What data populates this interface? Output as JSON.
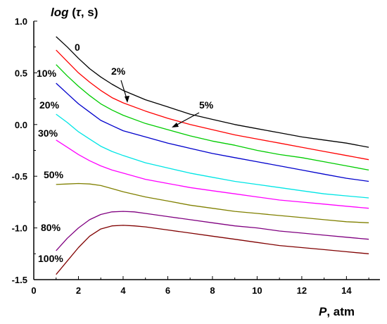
{
  "chart_data": {
    "type": "line",
    "ylabel": {
      "main": "log",
      "sym": "τ",
      "rest": ", s",
      "open": " (",
      "close": ")"
    },
    "xlabel": {
      "sym": "P",
      "unit": ", atm"
    },
    "xlim": [
      0,
      15.5
    ],
    "ylim": [
      -1.5,
      1.0
    ],
    "x_ticks": [
      "0",
      "2",
      "4",
      "6",
      "8",
      "10",
      "12",
      "14"
    ],
    "y_ticks": [
      "1.0",
      "0.5",
      "0.0",
      "-0.5",
      "-1.0",
      "-1.5"
    ],
    "series": [
      {
        "name": "0",
        "color": "#000000",
        "x": [
          1,
          1.5,
          2,
          2.5,
          3,
          3.5,
          4,
          5,
          6,
          7,
          8,
          9,
          10,
          11,
          12,
          13,
          14,
          15
        ],
        "y": [
          0.85,
          0.75,
          0.64,
          0.54,
          0.46,
          0.39,
          0.33,
          0.24,
          0.17,
          0.1,
          0.05,
          0.0,
          -0.04,
          -0.08,
          -0.12,
          -0.15,
          -0.18,
          -0.22
        ]
      },
      {
        "name": "2%",
        "color": "#ff0000",
        "x": [
          1,
          1.5,
          2,
          2.5,
          3,
          3.5,
          4,
          5,
          6,
          7,
          8,
          9,
          10,
          11,
          12,
          13,
          14,
          15
        ],
        "y": [
          0.72,
          0.61,
          0.5,
          0.41,
          0.33,
          0.26,
          0.21,
          0.13,
          0.06,
          0.0,
          -0.05,
          -0.1,
          -0.14,
          -0.18,
          -0.22,
          -0.26,
          -0.3,
          -0.34
        ]
      },
      {
        "name": "5%",
        "color": "#00cc00",
        "x": [
          1,
          1.5,
          2,
          2.5,
          3,
          3.5,
          4,
          5,
          6,
          7,
          8,
          9,
          10,
          11,
          12,
          13,
          14,
          15
        ],
        "y": [
          0.58,
          0.47,
          0.37,
          0.28,
          0.2,
          0.14,
          0.09,
          0.01,
          -0.05,
          -0.11,
          -0.16,
          -0.2,
          -0.25,
          -0.29,
          -0.32,
          -0.36,
          -0.4,
          -0.44
        ]
      },
      {
        "name": "10%",
        "color": "#0000cc",
        "x": [
          1,
          1.5,
          2,
          2.5,
          3,
          3.5,
          4,
          5,
          6,
          7,
          8,
          9,
          10,
          11,
          12,
          13,
          14,
          15
        ],
        "y": [
          0.4,
          0.3,
          0.2,
          0.12,
          0.04,
          -0.01,
          -0.06,
          -0.12,
          -0.18,
          -0.23,
          -0.28,
          -0.32,
          -0.36,
          -0.4,
          -0.44,
          -0.48,
          -0.52,
          -0.55
        ]
      },
      {
        "name": "20%",
        "color": "#00e5e5",
        "x": [
          1,
          1.5,
          2,
          2.5,
          3,
          3.5,
          4,
          5,
          6,
          7,
          8,
          9,
          10,
          11,
          12,
          13,
          14,
          15
        ],
        "y": [
          0.1,
          0.02,
          -0.07,
          -0.14,
          -0.21,
          -0.26,
          -0.3,
          -0.37,
          -0.42,
          -0.47,
          -0.51,
          -0.55,
          -0.58,
          -0.61,
          -0.64,
          -0.67,
          -0.69,
          -0.71
        ]
      },
      {
        "name": "30%",
        "color": "#ff00ff",
        "x": [
          1,
          1.5,
          2,
          2.5,
          3,
          3.5,
          4,
          5,
          6,
          7,
          8,
          9,
          10,
          11,
          12,
          13,
          14,
          15
        ],
        "y": [
          -0.15,
          -0.22,
          -0.29,
          -0.35,
          -0.4,
          -0.44,
          -0.47,
          -0.53,
          -0.57,
          -0.61,
          -0.64,
          -0.67,
          -0.7,
          -0.73,
          -0.75,
          -0.77,
          -0.79,
          -0.81
        ]
      },
      {
        "name": "50%",
        "color": "#808000",
        "x": [
          1,
          1.5,
          2,
          2.5,
          3,
          3.5,
          4,
          5,
          6,
          7,
          8,
          9,
          10,
          11,
          12,
          13,
          14,
          15
        ],
        "y": [
          -0.58,
          -0.575,
          -0.57,
          -0.575,
          -0.59,
          -0.62,
          -0.65,
          -0.7,
          -0.74,
          -0.78,
          -0.81,
          -0.84,
          -0.86,
          -0.88,
          -0.9,
          -0.92,
          -0.94,
          -0.95
        ]
      },
      {
        "name": "80%",
        "color": "#800080",
        "x": [
          1,
          1.5,
          2,
          2.5,
          3,
          3.5,
          4,
          4.5,
          5,
          6,
          7,
          8,
          9,
          10,
          11,
          12,
          13,
          14,
          15
        ],
        "y": [
          -1.22,
          -1.1,
          -1.0,
          -0.92,
          -0.87,
          -0.845,
          -0.84,
          -0.845,
          -0.86,
          -0.89,
          -0.92,
          -0.95,
          -0.98,
          -1.0,
          -1.03,
          -1.05,
          -1.07,
          -1.09,
          -1.11
        ]
      },
      {
        "name": "100%",
        "color": "#800000",
        "x": [
          1,
          1.5,
          2,
          2.5,
          3,
          3.5,
          4,
          4.5,
          5,
          6,
          7,
          8,
          9,
          10,
          11,
          12,
          13,
          14,
          15
        ],
        "y": [
          -1.45,
          -1.32,
          -1.19,
          -1.08,
          -1.01,
          -0.98,
          -0.975,
          -0.98,
          -0.99,
          -1.02,
          -1.05,
          -1.08,
          -1.11,
          -1.14,
          -1.17,
          -1.19,
          -1.21,
          -1.23,
          -1.25
        ]
      }
    ],
    "annotations": [
      {
        "text": "0",
        "series": "0"
      },
      {
        "text": "2%",
        "series": "2%"
      },
      {
        "text": "5%",
        "series": "5%"
      },
      {
        "text": "10%",
        "series": "10%"
      },
      {
        "text": "20%",
        "series": "20%"
      },
      {
        "text": "30%",
        "series": "30%"
      },
      {
        "text": "50%",
        "series": "50%"
      },
      {
        "text": "80%",
        "series": "80%"
      },
      {
        "text": "100%",
        "series": "100%"
      }
    ],
    "grid": false,
    "legend": "inline labels"
  }
}
